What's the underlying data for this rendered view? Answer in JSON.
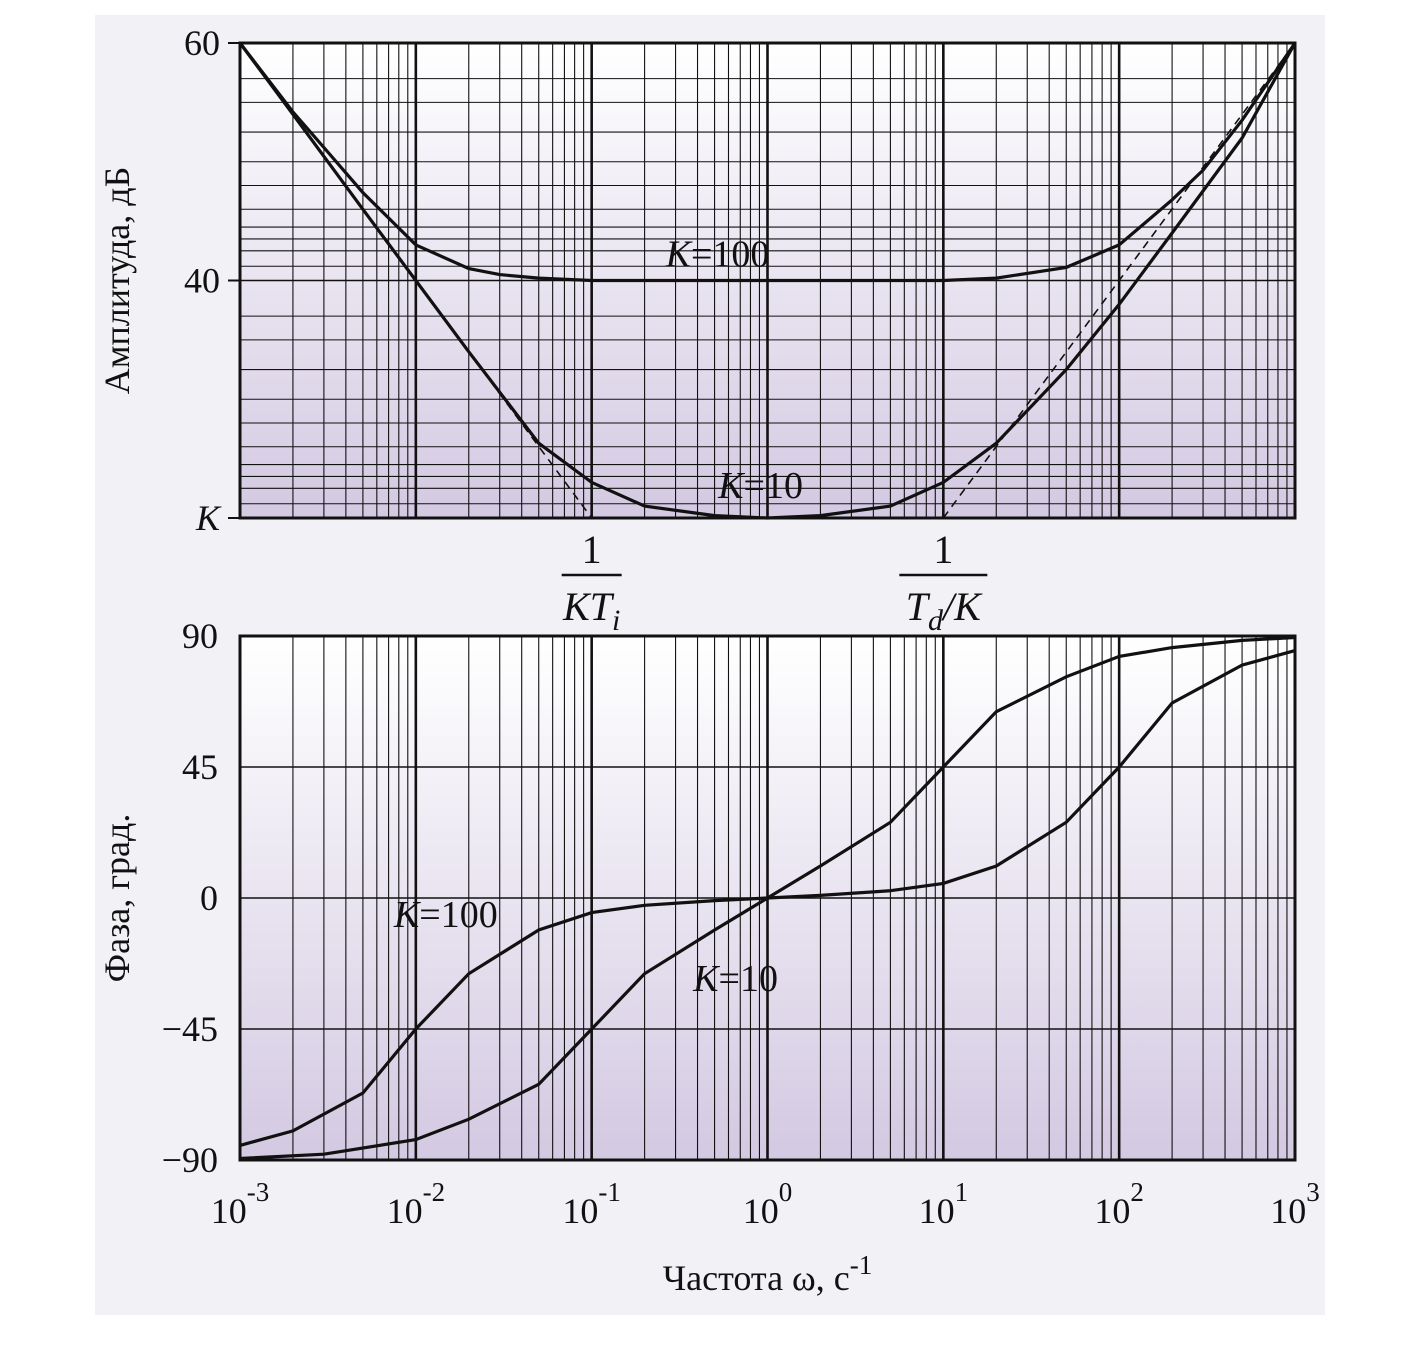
{
  "chart_data": [
    {
      "type": "line",
      "ylabel": "Амплитуда, дБ",
      "x_scale": "log",
      "xlim": [
        0.001,
        1000
      ],
      "ylim": [
        20,
        60
      ],
      "y_ticks": [
        "K",
        "40",
        "60"
      ],
      "grid": true,
      "x_markers": [
        {
          "x": 0.1,
          "num": "1",
          "den_main": "KT",
          "den_sub": "i"
        },
        {
          "x": 10,
          "num": "1",
          "den_main": "T",
          "den_sub": "d",
          "den_rest": "/K"
        }
      ],
      "series": [
        {
          "name": "K=100",
          "x": [
            0.001,
            0.002,
            0.003,
            0.005,
            0.01,
            0.02,
            0.03,
            0.05,
            0.1,
            1,
            10,
            20,
            50,
            100,
            200,
            300,
            500,
            1000
          ],
          "y": [
            60,
            54.2,
            51.2,
            47.4,
            43,
            41.0,
            40.5,
            40.2,
            40,
            40,
            40,
            40.2,
            41.1,
            43,
            46.8,
            49.3,
            53.5,
            60
          ]
        },
        {
          "name": "K=10",
          "x": [
            0.001,
            0.002,
            0.005,
            0.01,
            0.02,
            0.05,
            0.1,
            0.2,
            0.5,
            1,
            2,
            5,
            10,
            20,
            50,
            100,
            200,
            500,
            1000
          ],
          "y": [
            60,
            54,
            46.0,
            40.0,
            34.0,
            26.3,
            23.0,
            21.0,
            20.2,
            20,
            20.2,
            21.0,
            23.0,
            26.3,
            32.5,
            38.0,
            44.0,
            52.0,
            60
          ]
        }
      ],
      "asymptotes": [
        {
          "x": [
            0.001,
            0.1
          ],
          "y": [
            60,
            20
          ]
        },
        {
          "x": [
            10,
            1000
          ],
          "y": [
            20,
            60
          ]
        }
      ]
    },
    {
      "type": "line",
      "xlabel_main": "Частота ω, с",
      "xlabel_sup": "-1",
      "ylabel": "Фаза, град.",
      "x_scale": "log",
      "xlim": [
        0.001,
        1000
      ],
      "ylim": [
        -90,
        90
      ],
      "x_ticks": [
        {
          "base": "10",
          "exp": "-3"
        },
        {
          "base": "10",
          "exp": "-2"
        },
        {
          "base": "10",
          "exp": "-1"
        },
        {
          "base": "10",
          "exp": "0"
        },
        {
          "base": "10",
          "exp": "1"
        },
        {
          "base": "10",
          "exp": "2"
        },
        {
          "base": "10",
          "exp": "3"
        }
      ],
      "y_ticks": [
        "-90",
        "-45",
        "0",
        "45",
        "90"
      ],
      "grid": true,
      "series": [
        {
          "name": "K=100",
          "x": [
            0.001,
            0.002,
            0.005,
            0.01,
            0.02,
            0.05,
            0.1,
            0.2,
            0.5,
            1,
            2,
            5,
            10,
            20,
            50,
            100,
            200,
            500,
            1000
          ],
          "y": [
            -85,
            -80,
            -67,
            -45,
            -26,
            -11,
            -5,
            -2.5,
            -0.9,
            0,
            0.9,
            2.5,
            5,
            11,
            26,
            45,
            67,
            80,
            85
          ]
        },
        {
          "name": "K=10",
          "x": [
            0.001,
            0.003,
            0.01,
            0.02,
            0.05,
            0.1,
            0.2,
            0.5,
            1,
            2,
            5,
            10,
            20,
            50,
            100,
            200,
            500,
            1000
          ],
          "y": [
            -89.5,
            -88,
            -83,
            -76,
            -64,
            -45,
            -26,
            -11,
            0,
            11,
            26,
            45,
            64,
            76,
            83,
            86,
            88.5,
            89.5
          ]
        }
      ]
    }
  ]
}
